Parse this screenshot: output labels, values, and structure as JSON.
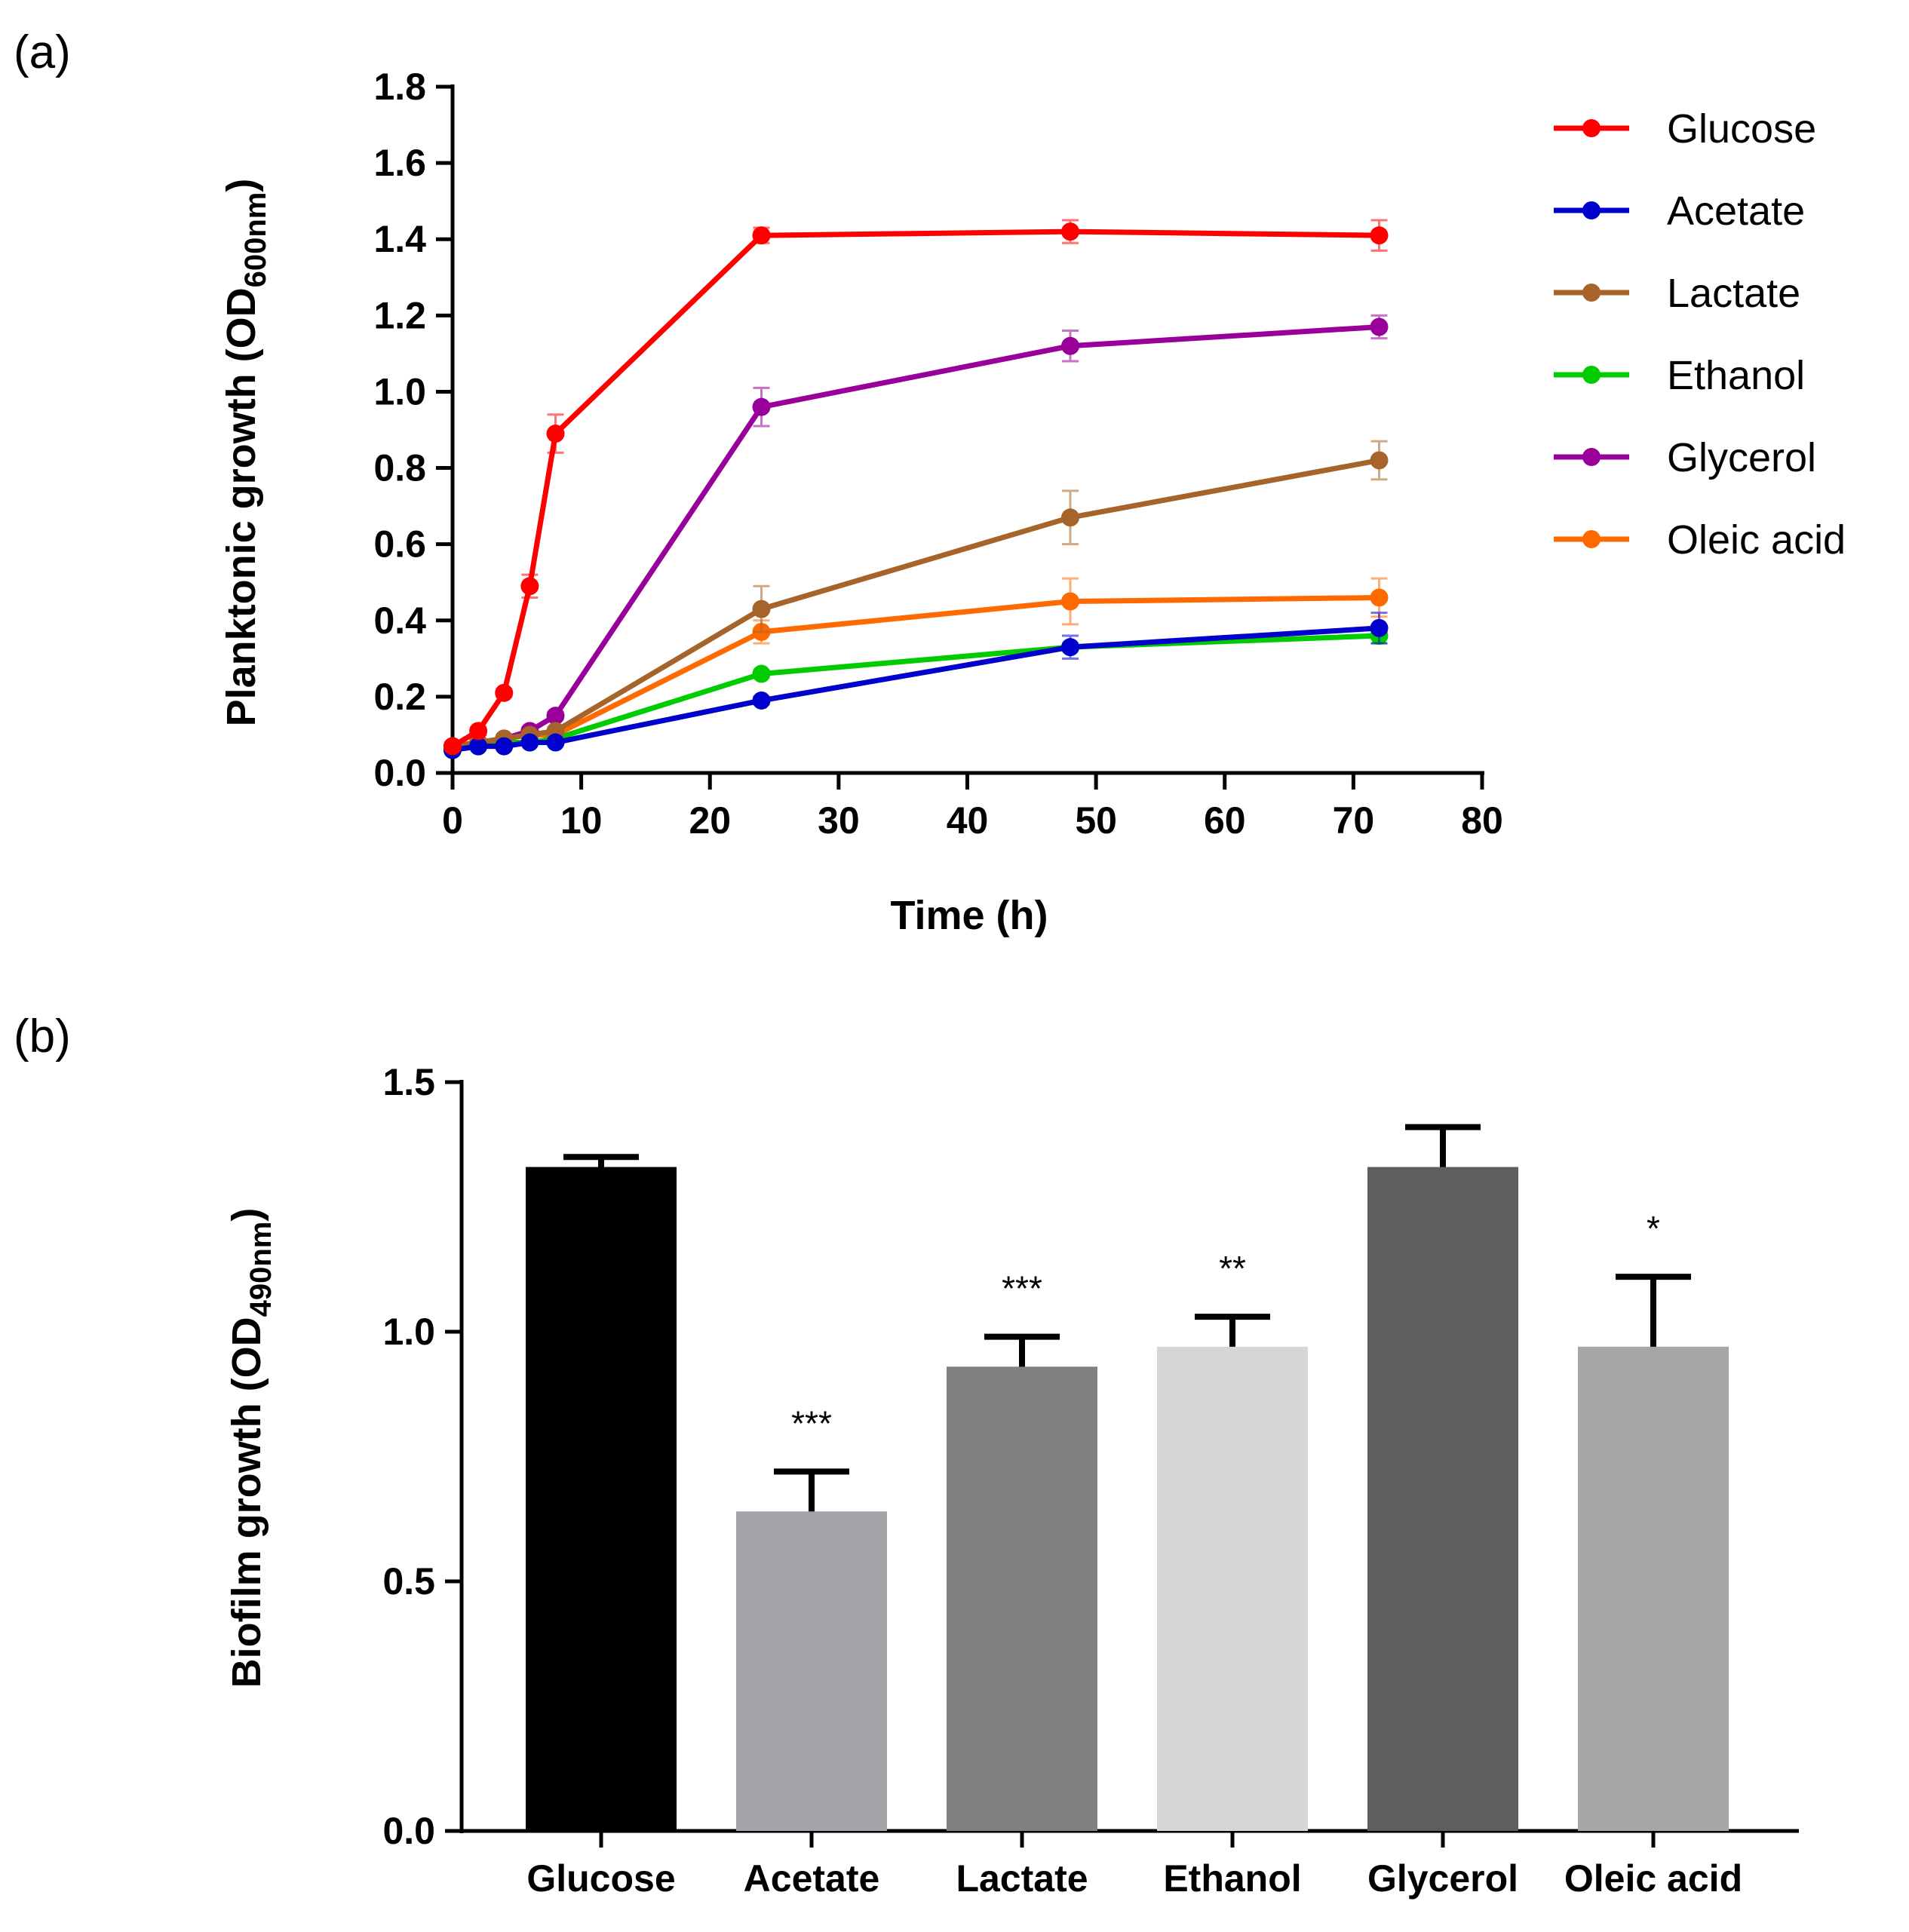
{
  "chart_data": [
    {
      "panel": "(a)",
      "type": "line",
      "xlabel": "Time (h)",
      "ylabel": "Planktonic growth (OD",
      "ylabel_sub": "600nm",
      "ylabel_end": ")",
      "xlim": [
        0,
        80
      ],
      "ylim": [
        0,
        1.8
      ],
      "xticks": [
        "0",
        "10",
        "20",
        "30",
        "40",
        "50",
        "60",
        "70",
        "80"
      ],
      "yticks": [
        "0.0",
        "0.2",
        "0.4",
        "0.6",
        "0.8",
        "1.0",
        "1.2",
        "1.4",
        "1.6",
        "1.8"
      ],
      "grid": false,
      "legend_position": "right",
      "series": [
        {
          "name": "Glucose",
          "color": "#ff0000",
          "x": [
            0,
            2,
            4,
            6,
            8,
            24,
            48,
            72
          ],
          "y": [
            0.07,
            0.11,
            0.21,
            0.49,
            0.89,
            1.41,
            1.42,
            1.41
          ],
          "err": [
            0.01,
            0.01,
            0.01,
            0.03,
            0.05,
            0.02,
            0.03,
            0.04
          ]
        },
        {
          "name": "Acetate",
          "color": "#0000cc",
          "x": [
            0,
            2,
            4,
            6,
            8,
            24,
            48,
            72
          ],
          "y": [
            0.06,
            0.07,
            0.07,
            0.08,
            0.08,
            0.19,
            0.33,
            0.38
          ],
          "err": [
            0.005,
            0.005,
            0.005,
            0.005,
            0.005,
            0.01,
            0.03,
            0.04
          ]
        },
        {
          "name": "Lactate",
          "color": "#a6642a",
          "x": [
            0,
            2,
            4,
            6,
            8,
            24,
            48,
            72
          ],
          "y": [
            0.07,
            0.08,
            0.09,
            0.1,
            0.11,
            0.43,
            0.67,
            0.82
          ],
          "err": [
            0.005,
            0.005,
            0.005,
            0.005,
            0.01,
            0.06,
            0.07,
            0.05
          ]
        },
        {
          "name": "Ethanol",
          "color": "#00cc00",
          "x": [
            0,
            2,
            4,
            6,
            8,
            24,
            48,
            72
          ],
          "y": [
            0.06,
            0.07,
            0.08,
            0.08,
            0.09,
            0.26,
            0.33,
            0.36
          ],
          "err": [
            0.005,
            0.005,
            0.005,
            0.005,
            0.005,
            0.01,
            0.01,
            0.02
          ]
        },
        {
          "name": "Glycerol",
          "color": "#990099",
          "x": [
            0,
            2,
            4,
            6,
            8,
            24,
            48,
            72
          ],
          "y": [
            0.07,
            0.08,
            0.09,
            0.11,
            0.15,
            0.96,
            1.12,
            1.17
          ],
          "err": [
            0.005,
            0.005,
            0.005,
            0.01,
            0.01,
            0.05,
            0.04,
            0.03
          ]
        },
        {
          "name": "Oleic acid",
          "color": "#ff6a00",
          "x": [
            0,
            2,
            4,
            6,
            8,
            24,
            48,
            72
          ],
          "y": [
            0.07,
            0.08,
            0.09,
            0.1,
            0.1,
            0.37,
            0.45,
            0.46
          ],
          "err": [
            0.005,
            0.005,
            0.005,
            0.005,
            0.005,
            0.03,
            0.06,
            0.05
          ]
        }
      ]
    },
    {
      "panel": "(b)",
      "type": "bar",
      "xlabel": "",
      "ylabel": "Biofilm growth (OD",
      "ylabel_sub": "490nm",
      "ylabel_end": ")",
      "ylim": [
        0,
        1.5
      ],
      "yticks": [
        "0.0",
        "0.5",
        "1.0",
        "1.5"
      ],
      "grid": false,
      "categories": [
        "Glucose",
        "Acetate",
        "Lactate",
        "Ethanol",
        "Glycerol",
        "Oleic acid"
      ],
      "values": [
        1.33,
        0.64,
        0.93,
        0.97,
        1.33,
        0.97
      ],
      "errors": [
        0.02,
        0.08,
        0.06,
        0.06,
        0.08,
        0.14
      ],
      "colors": [
        "#000000",
        "#a3a3a7",
        "#808080",
        "#d6d6d6",
        "#5e5e5e",
        "#a6a6a6"
      ],
      "significance": [
        "",
        "***",
        "***",
        "**",
        "",
        "*"
      ]
    }
  ]
}
